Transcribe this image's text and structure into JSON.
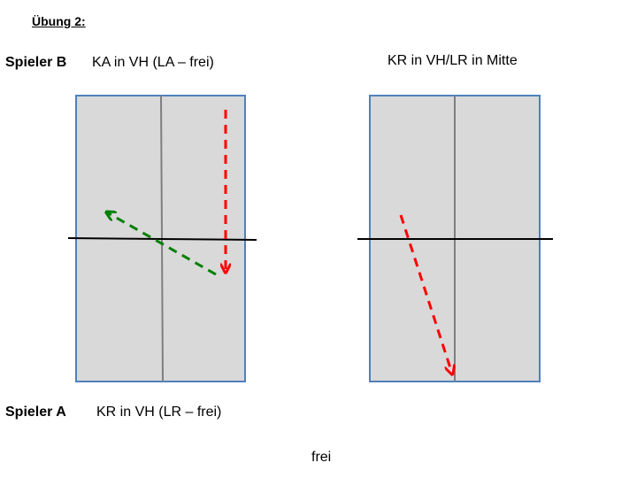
{
  "header": {
    "exercise_title": "Übung 2:"
  },
  "player_b": {
    "label": "Spieler B",
    "instruction": "KA in VH (LA – frei)"
  },
  "right_diagram": {
    "title": "KR in VH/LR in Mitte"
  },
  "player_a": {
    "label": "Spieler A",
    "instruction": "KR in VH (LR – frei)"
  },
  "footer": {
    "note": "frei"
  },
  "colors": {
    "table_fill": "#d9d9d9",
    "table_border": "#4f81bd",
    "center_line": "#7f7f7f",
    "net_line": "#000000",
    "arrow_red": "#ff0000",
    "arrow_green": "#008000"
  }
}
